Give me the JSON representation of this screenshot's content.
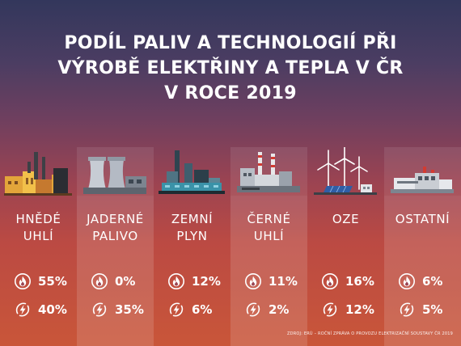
{
  "title": {
    "line1": "PODÍL PALIV A TECHNOLOGIÍ PŘI",
    "line2": "VÝROBĚ ELEKTŘINY A TEPLA V ČR",
    "line3": "V ROCE 2019"
  },
  "colors": {
    "flame_icon": "#ffffff",
    "bolt_icon": "#ffffff",
    "background_top": "#33375c",
    "background_bottom": "#c95639"
  },
  "categories": [
    {
      "icon": "coal-power-plant-illustration",
      "label_line1": "HNĚDÉ",
      "label_line2": "UHLÍ",
      "fuel_share": "55%",
      "power_share": "40%"
    },
    {
      "icon": "nuclear-power-plant-illustration",
      "label_line1": "JADERNÉ",
      "label_line2": "PALIVO",
      "fuel_share": "0%",
      "power_share": "35%"
    },
    {
      "icon": "gas-power-plant-illustration",
      "label_line1": "ZEMNÍ",
      "label_line2": "PLYN",
      "fuel_share": "12%",
      "power_share": "6%"
    },
    {
      "icon": "coal-power-plant-illustration",
      "label_line1": "ČERNÉ",
      "label_line2": "UHLÍ",
      "fuel_share": "11%",
      "power_share": "2%"
    },
    {
      "icon": "wind-solar-illustration",
      "label_line1": "OZE",
      "label_line2": "",
      "fuel_share": "16%",
      "power_share": "12%"
    },
    {
      "icon": "industrial-building-illustration",
      "label_line1": "OSTATNÍ",
      "label_line2": "",
      "fuel_share": "6%",
      "power_share": "5%"
    }
  ],
  "source_note": "ZDROJ: ERÚ – ROČNÍ ZPRÁVA O PROVOZU ELEKTRIZAČNÍ SOUSTAVY ČR 2019"
}
